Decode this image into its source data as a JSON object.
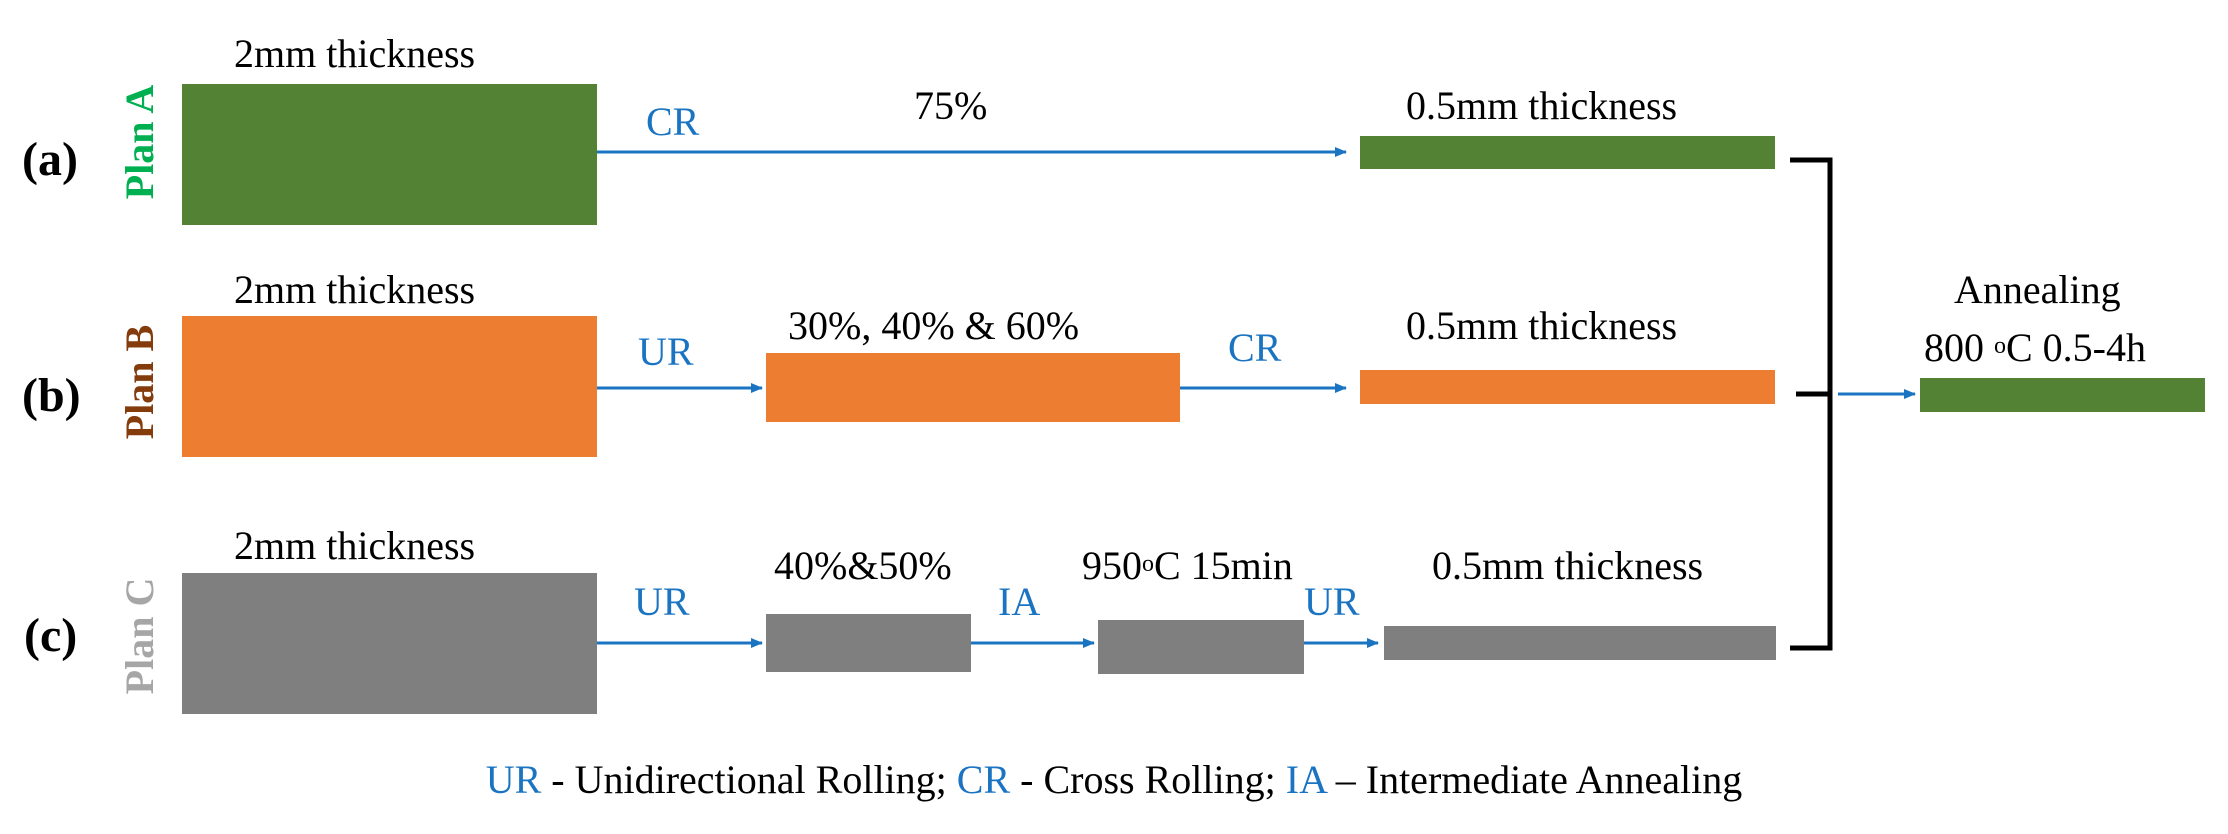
{
  "colors": {
    "green": "#548235",
    "orange": "#ed7d31",
    "gray": "#7f7f7f",
    "arrow_blue": "#1a74c2",
    "planA": "#00b050",
    "planB": "#843c0c",
    "planC": "#a6a6a6"
  },
  "rows": {
    "a": {
      "label": "(a)",
      "plan": "Plan A",
      "start_thickness": "2mm thickness",
      "step_op": "CR",
      "reduction": "75%",
      "end_thickness": "0.5mm thickness"
    },
    "b": {
      "label": "(b)",
      "plan": "Plan B",
      "start_thickness": "2mm thickness",
      "step1_op": "UR",
      "reduction": "30%, 40% & 60%",
      "step2_op": "CR",
      "end_thickness": "0.5mm thickness"
    },
    "c": {
      "label": "(c)",
      "plan": "Plan C",
      "start_thickness": "2mm thickness",
      "step1_op": "UR",
      "reduction": "40%&50%",
      "step2_op": "IA",
      "ia_temp": "950",
      "ia_deg_sym": "o",
      "ia_rest": "C 15min",
      "step3_op": "UR",
      "end_thickness": "0.5mm thickness"
    }
  },
  "annealing": {
    "title": "Annealing",
    "temp": "800 ",
    "deg_sym": "o",
    "rest": "C 0.5-4h"
  },
  "legend": {
    "ur": "UR",
    "ur_text": " - Unidirectional Rolling; ",
    "cr": "CR",
    "cr_text": " - Cross Rolling; ",
    "ia": "IA",
    "ia_text": " – Intermediate Annealing"
  }
}
